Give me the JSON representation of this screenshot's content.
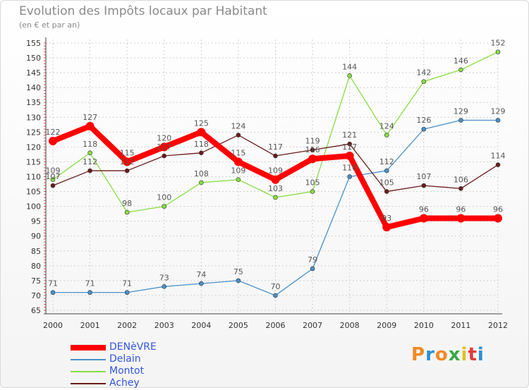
{
  "chart_data": {
    "type": "line",
    "title": "Evolution des Impôts locaux par Habitant",
    "subtitle": "(en € et par an)",
    "xlabel": "",
    "ylabel": "",
    "x": [
      "2000",
      "2001",
      "2002",
      "2003",
      "2004",
      "2005",
      "2006",
      "2007",
      "2008",
      "2009",
      "2010",
      "2011",
      "2012"
    ],
    "ylim": [
      65,
      155
    ],
    "yticks": [
      65,
      70,
      75,
      80,
      85,
      90,
      95,
      100,
      105,
      110,
      115,
      120,
      125,
      130,
      135,
      140,
      145,
      150,
      155
    ],
    "grid": true,
    "legend_position": "bottom-left",
    "series": [
      {
        "name": "DENèVRE",
        "color": "#ff0000",
        "values": [
          122,
          127,
          115,
          120,
          125,
          115,
          109,
          116,
          117,
          93,
          96,
          96,
          96
        ]
      },
      {
        "name": "Delain",
        "color": "#4a90c8",
        "values": [
          71,
          71,
          71,
          73,
          74,
          75,
          70,
          79,
          110,
          112,
          126,
          129,
          129
        ]
      },
      {
        "name": "Montot",
        "color": "#88dd44",
        "values": [
          109,
          118,
          98,
          100,
          108,
          109,
          103,
          105,
          144,
          124,
          142,
          146,
          152
        ]
      },
      {
        "name": "Achey",
        "color": "#6b1c1c",
        "values": [
          107,
          112,
          112,
          117,
          118,
          124,
          117,
          119,
          121,
          105,
          107,
          106,
          114
        ]
      }
    ],
    "data_labels": [
      {
        "series": "Delain",
        "values": [
          "71",
          "71",
          "71",
          "73",
          "74",
          "75",
          "70",
          "79",
          "110",
          "112",
          "126",
          "129",
          "129"
        ]
      },
      {
        "series": "Montot",
        "values": [
          "109",
          "118",
          "98",
          "100",
          "108",
          "109",
          "103",
          "105",
          "144",
          "124",
          "142",
          "146",
          "152"
        ]
      },
      {
        "series": "Achey",
        "values": [
          "107",
          "112",
          "112",
          "117",
          "118",
          "124",
          "117",
          "119",
          "121",
          "105",
          "107",
          "106",
          "114"
        ]
      },
      {
        "series": "DENèVRE",
        "values": [
          "122",
          "127",
          "115",
          "120",
          "125",
          "115",
          "109",
          "116",
          "117",
          "93",
          "96",
          "96",
          "96"
        ]
      }
    ]
  },
  "brand": {
    "logo_text": "Proxiti"
  }
}
